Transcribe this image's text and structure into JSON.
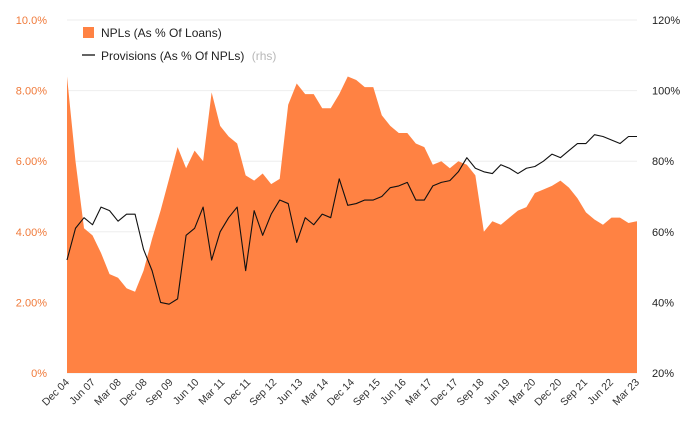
{
  "chart_data": {
    "type": "area",
    "title": "",
    "xlabel": "",
    "ylabel": "",
    "colors": {
      "area": "#ff8243",
      "line": "#111111",
      "left_ticks": "#f07a3a",
      "right_ticks": "#222222"
    },
    "y_left": {
      "min": 0,
      "max": 10,
      "ticks": [
        0,
        2,
        4,
        6,
        8,
        10
      ],
      "tick_labels": [
        "0%",
        "2.00%",
        "4.00%",
        "6.00%",
        "8.00%",
        "10.0%"
      ]
    },
    "y_right": {
      "min": 20,
      "max": 120,
      "ticks": [
        20,
        40,
        60,
        80,
        100,
        120
      ],
      "tick_labels": [
        "20%",
        "40%",
        "60%",
        "80%",
        "100%",
        "120%"
      ]
    },
    "x_tick_labels": [
      "Dec 04",
      "Jun 07",
      "Mar 08",
      "Dec 08",
      "Sep 09",
      "Jun 10",
      "Mar 11",
      "Dec 11",
      "Sep 12",
      "Jun 13",
      "Mar 14",
      "Dec 14",
      "Sep 15",
      "Jun 16",
      "Mar 17",
      "Dec 17",
      "Sep 18",
      "Jun 19",
      "Mar 20",
      "Dec 20",
      "Sep 21",
      "Jun 22",
      "Mar 23"
    ],
    "legend": [
      {
        "label": "NPLs (As % Of Loans)",
        "suffix": "",
        "marker": "square"
      },
      {
        "label": "Provisions (As % Of NPLs)",
        "suffix": "(rhs)",
        "marker": "line"
      }
    ],
    "series": [
      {
        "name": "NPLs (As % Of Loans)",
        "axis": "left",
        "type": "area",
        "values": [
          8.4,
          6.0,
          4.1,
          3.9,
          3.4,
          2.8,
          2.7,
          2.4,
          2.3,
          2.9,
          3.8,
          4.6,
          5.5,
          6.4,
          5.8,
          6.3,
          6.0,
          7.95,
          7.0,
          6.7,
          6.5,
          5.6,
          5.45,
          5.65,
          5.35,
          5.5,
          7.6,
          8.2,
          7.9,
          7.9,
          7.5,
          7.5,
          7.9,
          8.4,
          8.3,
          8.1,
          8.1,
          7.3,
          7.0,
          6.8,
          6.8,
          6.5,
          6.4,
          5.9,
          6.0,
          5.8,
          6.0,
          5.9,
          5.6,
          4.0,
          4.3,
          4.2,
          4.4,
          4.6,
          4.7,
          5.1,
          5.2,
          5.3,
          5.45,
          5.25,
          4.95,
          4.55,
          4.35,
          4.2,
          4.4,
          4.4,
          4.25,
          4.3
        ]
      },
      {
        "name": "Provisions (As % Of NPLs)",
        "axis": "right",
        "type": "line",
        "values": [
          52,
          61,
          64,
          62,
          67,
          66,
          63,
          65,
          65,
          55,
          49,
          40,
          39.5,
          41,
          59,
          61,
          67,
          52,
          60,
          64,
          67,
          49,
          66,
          59,
          65,
          69,
          68,
          57,
          64,
          62,
          65,
          64,
          75,
          67.5,
          68,
          69,
          69,
          70,
          72.5,
          73,
          74,
          69,
          69,
          73,
          74,
          74.5,
          77,
          81,
          78,
          77,
          76.5,
          79,
          78,
          76.5,
          78,
          78.5,
          80,
          82,
          81,
          83,
          85,
          85,
          87.5,
          87,
          86,
          85,
          87,
          87
        ]
      }
    ]
  }
}
